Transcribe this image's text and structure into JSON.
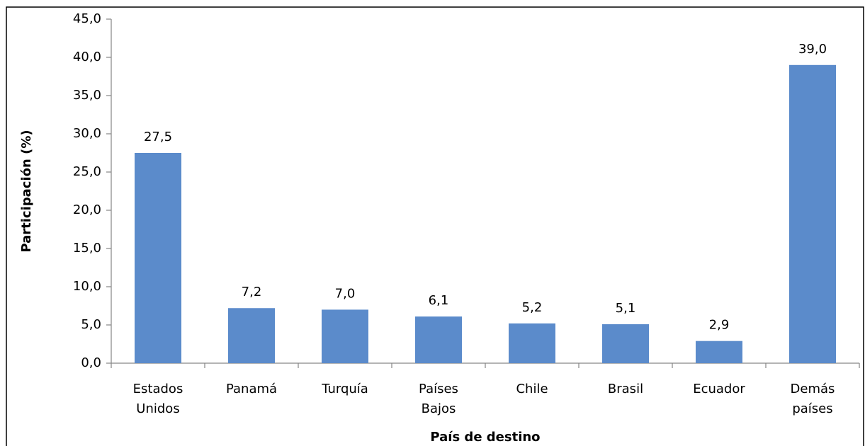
{
  "chart_data": {
    "type": "bar",
    "categories": [
      "Estados Unidos",
      "Panamá",
      "Turquía",
      "Países Bajos",
      "Chile",
      "Brasil",
      "Ecuador",
      "Demás países"
    ],
    "values": [
      27.5,
      7.2,
      7.0,
      6.1,
      5.2,
      5.1,
      2.9,
      39.0
    ],
    "value_labels": [
      "27,5",
      "7,2",
      "7,0",
      "6,1",
      "5,2",
      "5,1",
      "2,9",
      "39,0"
    ],
    "color": "#5b8bcb",
    "x_label": "País de destino",
    "y_label": "Participación (%)",
    "ylim": [
      0,
      45
    ],
    "yticks": [
      {
        "value": 0,
        "label": "0,0"
      },
      {
        "value": 5,
        "label": "5,0"
      },
      {
        "value": 10,
        "label": "10,0"
      },
      {
        "value": 15,
        "label": "15,0"
      },
      {
        "value": 20,
        "label": "20,0"
      },
      {
        "value": 25,
        "label": "25,0"
      },
      {
        "value": 30,
        "label": "30,0"
      },
      {
        "value": 35,
        "label": "35,0"
      },
      {
        "value": 40,
        "label": "40,0"
      },
      {
        "value": 45,
        "label": "45,0"
      }
    ],
    "grid": false
  }
}
